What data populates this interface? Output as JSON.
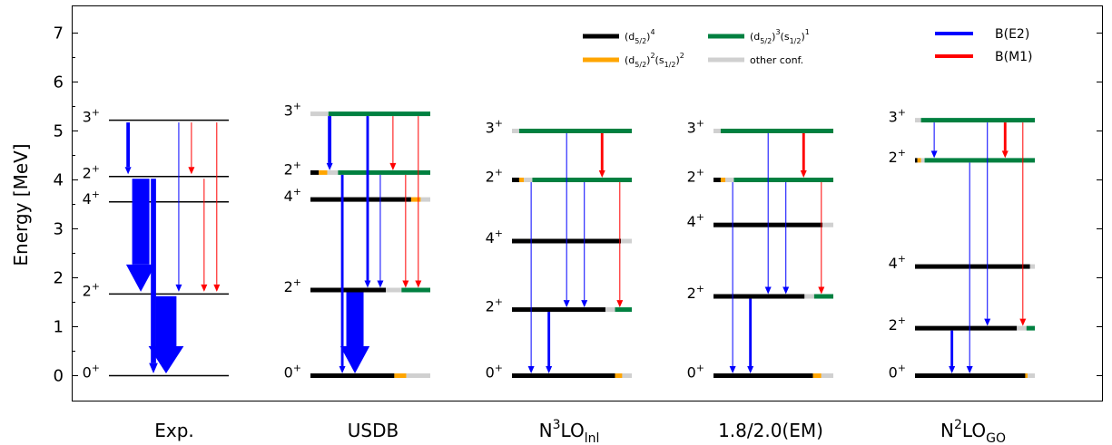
{
  "chart_data": {
    "type": "level-scheme",
    "ylabel": "Energy [MeV]",
    "ylim": [
      -0.3,
      7.5
    ],
    "yticks": [
      "0",
      "1",
      "2",
      "3",
      "4",
      "5",
      "6",
      "7"
    ],
    "legend": {
      "configs": [
        {
          "key": "d4",
          "label": "(d5/2)^4",
          "color": "#000000"
        },
        {
          "key": "d3s1",
          "label": "(d5/2)^3(s1/2)^1",
          "color": "#008040"
        },
        {
          "key": "d2s2",
          "label": "(d5/2)^2(s1/2)^2",
          "color": "#ffa500"
        },
        {
          "key": "other",
          "label": "other conf.",
          "color": "#d0d0d0"
        }
      ],
      "transitions": [
        {
          "key": "E2",
          "label": "B(E2)",
          "color": "#0000ff"
        },
        {
          "key": "M1",
          "label": "B(M1)",
          "color": "#ff0000"
        }
      ]
    },
    "columns": [
      {
        "label": "Exp.",
        "levels": [
          {
            "id": "0",
            "spin": "0+",
            "energy": 0.0
          },
          {
            "id": "2a",
            "spin": "2+",
            "energy": 1.67
          },
          {
            "id": "4",
            "spin": "4+",
            "energy": 3.55
          },
          {
            "id": "2b",
            "spin": "2+",
            "energy": 4.07
          },
          {
            "id": "3",
            "spin": "3+",
            "energy": 5.22
          }
        ],
        "transitions": [
          {
            "from": "3",
            "to": "2b",
            "type": "E2",
            "strength": 2
          },
          {
            "from": "2b",
            "to": "2a",
            "type": "E2",
            "strength": 10
          },
          {
            "from": "2b",
            "to": "0",
            "type": "E2",
            "strength": 3
          },
          {
            "from": "2a",
            "to": "0",
            "type": "E2",
            "strength": 12
          },
          {
            "from": "3",
            "to": "2a",
            "type": "E2",
            "strength": 0.5
          },
          {
            "from": "3",
            "to": "2b",
            "type": "M1",
            "strength": 0.5
          },
          {
            "from": "2b",
            "to": "2a",
            "type": "M1",
            "strength": 0.5
          },
          {
            "from": "3",
            "to": "2a",
            "type": "M1",
            "strength": 0.5
          }
        ]
      },
      {
        "label": "USDB",
        "levels": [
          {
            "id": "0",
            "spin": "0+",
            "energy": 0.0,
            "comp": {
              "d4": 0.7,
              "d2s2": 0.1,
              "other": 0.2
            }
          },
          {
            "id": "2a",
            "spin": "2+",
            "energy": 1.75,
            "comp": {
              "d4": 0.63,
              "other": 0.13,
              "d3s1": 0.24
            }
          },
          {
            "id": "4",
            "spin": "4+",
            "energy": 3.6,
            "comp": {
              "d4": 0.84,
              "d2s2": 0.08,
              "other": 0.08
            }
          },
          {
            "id": "2b",
            "spin": "2+",
            "energy": 4.15,
            "comp": {
              "d4": 0.07,
              "d2s2": 0.07,
              "other": 0.09,
              "d3s1": 0.77
            }
          },
          {
            "id": "3",
            "spin": "3+",
            "energy": 5.35,
            "comp": {
              "other": 0.15,
              "d3s1": 0.85
            }
          }
        ],
        "transitions": [
          {
            "from": "3",
            "to": "2b",
            "type": "E2",
            "strength": 2
          },
          {
            "from": "2b",
            "to": "0",
            "type": "E2",
            "strength": 1.5
          },
          {
            "from": "2a",
            "to": "0",
            "type": "E2",
            "strength": 10
          },
          {
            "from": "3",
            "to": "2a",
            "type": "E2",
            "strength": 1.5
          },
          {
            "from": "2b",
            "to": "2a",
            "type": "E2",
            "strength": 0.5
          },
          {
            "from": "3",
            "to": "2b",
            "type": "M1",
            "strength": 0.5
          },
          {
            "from": "2b",
            "to": "2a",
            "type": "M1",
            "strength": 0.5
          },
          {
            "from": "3",
            "to": "2a",
            "type": "M1",
            "strength": 0.5
          }
        ]
      },
      {
        "label": "N3LOlnl",
        "levels": [
          {
            "id": "0",
            "spin": "0+",
            "energy": 0.0,
            "comp": {
              "d4": 0.86,
              "d2s2": 0.06,
              "other": 0.08
            }
          },
          {
            "id": "2a",
            "spin": "2+",
            "energy": 1.35,
            "comp": {
              "d4": 0.78,
              "other": 0.08,
              "d3s1": 0.14
            }
          },
          {
            "id": "4",
            "spin": "4+",
            "energy": 2.75,
            "comp": {
              "d4": 0.91,
              "other": 0.09
            }
          },
          {
            "id": "2b",
            "spin": "2+",
            "energy": 4.0,
            "comp": {
              "d4": 0.06,
              "d2s2": 0.04,
              "other": 0.07,
              "d3s1": 0.83
            }
          },
          {
            "id": "3",
            "spin": "3+",
            "energy": 5.0,
            "comp": {
              "other": 0.06,
              "d3s1": 0.94
            }
          }
        ],
        "transitions": [
          {
            "from": "2b",
            "to": "0",
            "type": "E2",
            "strength": 0.5
          },
          {
            "from": "2a",
            "to": "0",
            "type": "E2",
            "strength": 1.5
          },
          {
            "from": "3",
            "to": "2a",
            "type": "E2",
            "strength": 0.5
          },
          {
            "from": "2b",
            "to": "2a",
            "type": "E2",
            "strength": 0.5
          },
          {
            "from": "3",
            "to": "2b",
            "type": "M1",
            "strength": 1.5
          },
          {
            "from": "2b",
            "to": "2a",
            "type": "M1",
            "strength": 0.5
          }
        ]
      },
      {
        "label": "1.8/2.0(EM)",
        "levels": [
          {
            "id": "0",
            "spin": "0+",
            "energy": 0.0,
            "comp": {
              "d4": 0.83,
              "d2s2": 0.07,
              "other": 0.1
            }
          },
          {
            "id": "2a",
            "spin": "2+",
            "energy": 1.62,
            "comp": {
              "d4": 0.76,
              "other": 0.08,
              "d3s1": 0.16
            }
          },
          {
            "id": "4",
            "spin": "4+",
            "energy": 3.08,
            "comp": {
              "d4": 0.91,
              "other": 0.09
            }
          },
          {
            "id": "2b",
            "spin": "2+",
            "energy": 4.0,
            "comp": {
              "d4": 0.06,
              "d2s2": 0.04,
              "other": 0.07,
              "d3s1": 0.83
            }
          },
          {
            "id": "3",
            "spin": "3+",
            "energy": 5.0,
            "comp": {
              "other": 0.06,
              "d3s1": 0.94
            }
          }
        ],
        "transitions": [
          {
            "from": "2b",
            "to": "0",
            "type": "E2",
            "strength": 0.5
          },
          {
            "from": "2a",
            "to": "0",
            "type": "E2",
            "strength": 1.5
          },
          {
            "from": "3",
            "to": "2a",
            "type": "E2",
            "strength": 0.5
          },
          {
            "from": "2b",
            "to": "2a",
            "type": "E2",
            "strength": 0.5
          },
          {
            "from": "3",
            "to": "2b",
            "type": "M1",
            "strength": 1.5
          },
          {
            "from": "2b",
            "to": "2a",
            "type": "M1",
            "strength": 0.5
          }
        ]
      },
      {
        "label": "N2LOGO",
        "levels": [
          {
            "id": "0",
            "spin": "0+",
            "energy": 0.0,
            "comp": {
              "d4": 0.92,
              "d2s2": 0.02,
              "other": 0.06
            }
          },
          {
            "id": "2a",
            "spin": "2+",
            "energy": 0.97,
            "comp": {
              "d4": 0.85,
              "other": 0.08,
              "d3s1": 0.07
            }
          },
          {
            "id": "4",
            "spin": "4+",
            "energy": 2.23,
            "comp": {
              "d4": 0.96,
              "other": 0.04
            }
          },
          {
            "id": "2b",
            "spin": "2+",
            "energy": 4.4,
            "comp": {
              "d4": 0.02,
              "d2s2": 0.03,
              "other": 0.03,
              "d3s1": 0.92
            }
          },
          {
            "id": "3",
            "spin": "3+",
            "energy": 5.22,
            "comp": {
              "other": 0.05,
              "d3s1": 0.95
            }
          }
        ],
        "transitions": [
          {
            "from": "3",
            "to": "2b",
            "type": "E2",
            "strength": 0.5
          },
          {
            "from": "2a",
            "to": "0",
            "type": "E2",
            "strength": 1.5
          },
          {
            "from": "2b",
            "to": "0",
            "type": "E2",
            "strength": 0.5
          },
          {
            "from": "3",
            "to": "2a",
            "type": "E2",
            "strength": 0.5
          },
          {
            "from": "3",
            "to": "2b",
            "type": "M1",
            "strength": 1.5
          },
          {
            "from": "3",
            "to": "2a",
            "type": "M1",
            "strength": 0.5
          }
        ]
      }
    ]
  }
}
